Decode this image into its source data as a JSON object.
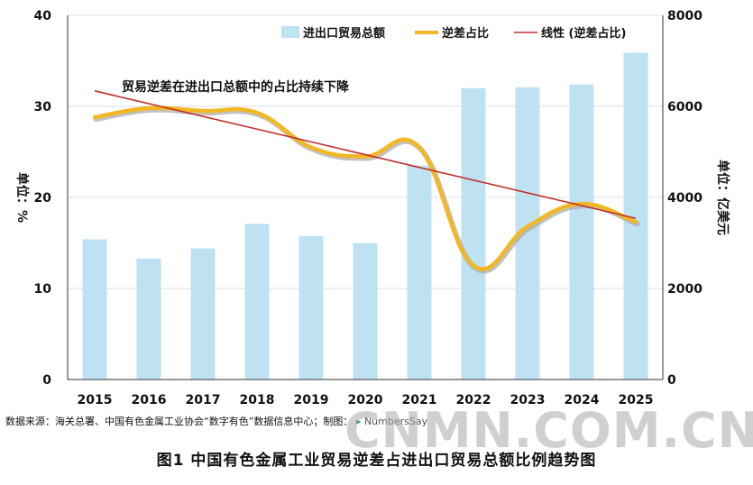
{
  "chart_data": {
    "type": "bar",
    "categories": [
      "2015",
      "2016",
      "2017",
      "2018",
      "2019",
      "2020",
      "2021",
      "2022",
      "2023",
      "2024",
      "2025"
    ],
    "series": [
      {
        "name": "进出口贸易总额",
        "type": "bar",
        "axis": "right",
        "values": [
          3080,
          2660,
          2880,
          3420,
          3150,
          3000,
          4700,
          6400,
          6420,
          6480,
          7180
        ]
      },
      {
        "name": "逆差占比",
        "type": "line",
        "smooth": true,
        "axis": "left",
        "values": [
          28.8,
          29.8,
          29.5,
          29.3,
          25.5,
          24.5,
          25.5,
          12.5,
          16.8,
          19.3,
          17.3
        ]
      },
      {
        "name": "线性 (逆差占比)",
        "type": "trendline",
        "axis": "left",
        "values": [
          31.7,
          30.3,
          28.9,
          27.5,
          26.1,
          24.7,
          23.3,
          21.9,
          20.5,
          19.1,
          17.7
        ]
      }
    ],
    "ylabel": "单位：%",
    "y2label": "单位：亿美元",
    "ylim": [
      0,
      40
    ],
    "y2lim": [
      0,
      8000
    ],
    "yticks": [
      0,
      10,
      20,
      30,
      40
    ],
    "y2ticks": [
      0,
      2000,
      4000,
      6000,
      8000
    ],
    "grid": true,
    "legend": "top-right",
    "annotation": "贸易逆差在进出口总额中的占比持续下降",
    "colors": {
      "bar": "#bfe2f3",
      "line": "#f2b824",
      "line_shadow": "#a8a8a8",
      "trend": "#c0302c"
    }
  },
  "source_text": "数据来源：海关总署、中国有色金属工业协会“数字有色”数据信息中心；制图：",
  "source_brand": "NumbersSay",
  "caption": "图1  中国有色金属工业贸易逆差占进出口贸易总额比例趋势图",
  "watermark": "CNMN.COM.CN"
}
